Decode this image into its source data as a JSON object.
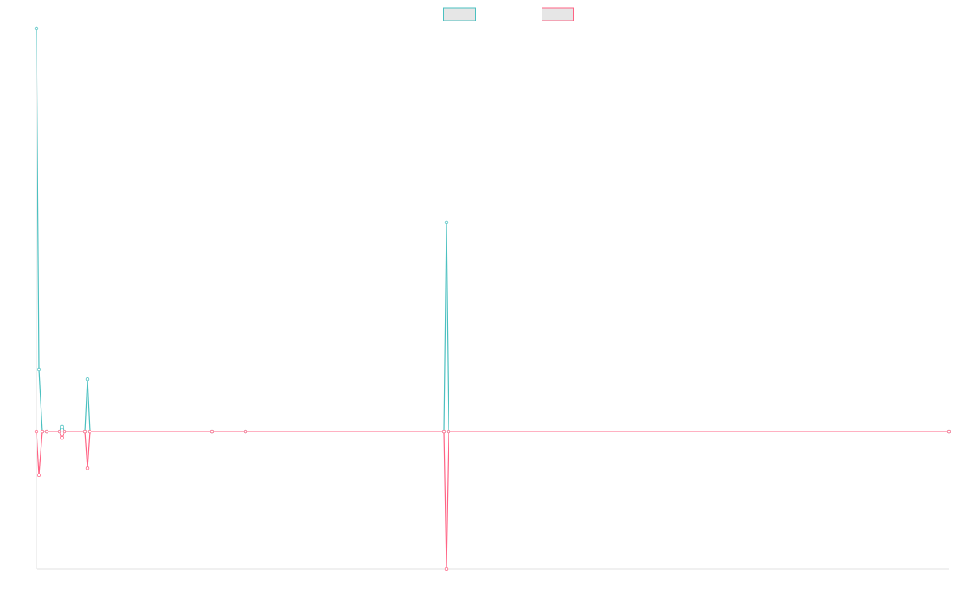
{
  "chart_data": {
    "type": "line",
    "x": [
      0,
      3,
      7,
      13,
      29,
      32,
      35,
      61,
      64,
      67,
      221,
      263,
      513,
      516,
      519,
      1149
    ],
    "xlim": [
      0,
      1149
    ],
    "ylim": [
      -3.41,
      10
    ],
    "series": [
      {
        "color": "#4bc0c0",
        "values": [
          10,
          1.54,
          0,
          0,
          0,
          0.12,
          0,
          0,
          1.3,
          0,
          0,
          0,
          0,
          5.19,
          0,
          0
        ]
      },
      {
        "color": "#ff6384",
        "values": [
          0,
          -1.08,
          0,
          0,
          0,
          -0.16,
          0,
          0,
          -0.91,
          0,
          0,
          0,
          0,
          -3.41,
          0,
          0
        ]
      }
    ],
    "legend": "top"
  }
}
